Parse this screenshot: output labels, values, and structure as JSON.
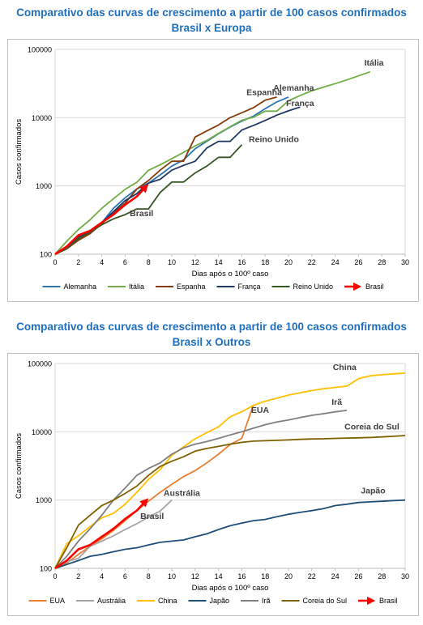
{
  "charts": [
    {
      "title_line1": "Comparativo das curvas de crescimento a partir de 100 casos confirmados",
      "title_line2": "Brasil x Europa"
    },
    {
      "title_line1": "Comparativo das curvas de crescimento a partir de 100 casos confirmados",
      "title_line2": "Brasil x Outros"
    }
  ],
  "chart_data": [
    {
      "type": "line",
      "title": "Comparativo das curvas de crescimento a partir de 100 casos confirmados Brasil x Europa",
      "xlabel": "Dias após o 100º caso",
      "ylabel": "Casos confirmados",
      "xlim": [
        0,
        30
      ],
      "ylim": [
        100,
        100000
      ],
      "yscale": "log",
      "xticks": [
        "0",
        "2",
        "4",
        "6",
        "8",
        "10",
        "12",
        "14",
        "16",
        "18",
        "20",
        "22",
        "24",
        "26",
        "28",
        "30"
      ],
      "yticks": [
        "100",
        "1000",
        "10000",
        "100000"
      ],
      "grid": "horizontal",
      "legend": "bottom",
      "series": [
        {
          "name": "Alemanha",
          "color": "#2e75b6",
          "label": "Alemanha",
          "x": [
            0,
            1,
            2,
            3,
            4,
            5,
            6,
            7,
            8,
            9,
            10,
            11,
            12,
            13,
            14,
            15,
            16,
            17,
            18,
            19,
            20
          ],
          "y": [
            100,
            130,
            165,
            210,
            290,
            470,
            670,
            900,
            1100,
            1450,
            1950,
            2400,
            3500,
            4500,
            5800,
            7300,
            8900,
            10500,
            13500,
            17000,
            20000
          ]
        },
        {
          "name": "Itália",
          "color": "#70ad47",
          "label": "Itália",
          "x": [
            0,
            1,
            2,
            3,
            4,
            5,
            6,
            7,
            8,
            9,
            10,
            11,
            12,
            13,
            14,
            15,
            16,
            17,
            18,
            19,
            20,
            21,
            22,
            23,
            24,
            25,
            26,
            27
          ],
          "y": [
            100,
            155,
            230,
            320,
            470,
            650,
            890,
            1130,
            1690,
            2040,
            2500,
            3090,
            3860,
            4640,
            5880,
            7380,
            9170,
            10150,
            12460,
            12460,
            17660,
            21160,
            24750,
            27980,
            31500,
            35700,
            41000,
            47000
          ]
        },
        {
          "name": "Espanha",
          "color": "#843c0c",
          "label": "Espanha",
          "x": [
            0,
            1,
            2,
            3,
            4,
            5,
            6,
            7,
            8,
            9,
            10,
            11,
            12,
            13,
            14,
            15,
            16,
            17,
            18,
            19
          ],
          "y": [
            100,
            120,
            160,
            200,
            280,
            400,
            560,
            900,
            1200,
            1700,
            2300,
            2300,
            5200,
            6400,
            7800,
            10000,
            11800,
            14000,
            18000,
            20000
          ]
        },
        {
          "name": "França",
          "color": "#203864",
          "label": "França",
          "x": [
            0,
            1,
            2,
            3,
            4,
            5,
            6,
            7,
            8,
            9,
            10,
            11,
            12,
            13,
            14,
            15,
            16,
            17,
            18,
            19,
            20,
            21
          ],
          "y": [
            100,
            130,
            180,
            210,
            290,
            420,
            610,
            770,
            1100,
            1250,
            1700,
            2000,
            2300,
            3600,
            4500,
            4500,
            6600,
            7700,
            9100,
            10900,
            12600,
            14300
          ]
        },
        {
          "name": "Reino Unido",
          "color": "#375623",
          "label": "Reino Unido",
          "x": [
            0,
            1,
            2,
            3,
            4,
            5,
            6,
            7,
            8,
            9,
            10,
            11,
            12,
            13,
            14,
            15,
            16
          ],
          "y": [
            100,
            120,
            170,
            210,
            270,
            330,
            380,
            460,
            460,
            800,
            1140,
            1140,
            1550,
            1950,
            2630,
            2630,
            4000
          ]
        },
        {
          "name": "Brasil",
          "color": "#ff0000",
          "label": "Brasil",
          "arrow": true,
          "x": [
            0,
            1,
            2,
            3,
            4,
            5,
            6,
            7,
            7.8
          ],
          "y": [
            100,
            130,
            190,
            220,
            290,
            380,
            530,
            700,
            980
          ]
        }
      ]
    },
    {
      "type": "line",
      "title": "Comparativo das curvas de crescimento a partir de 100 casos confirmados Brasil x Outros",
      "xlabel": "Dias após o 100º caso",
      "ylabel": "Casos confirmados",
      "xlim": [
        0,
        30
      ],
      "ylim": [
        100,
        100000
      ],
      "yscale": "log",
      "xticks": [
        "0",
        "2",
        "4",
        "6",
        "8",
        "10",
        "12",
        "14",
        "16",
        "18",
        "20",
        "22",
        "24",
        "26",
        "28",
        "30"
      ],
      "yticks": [
        "100",
        "1000",
        "10000",
        "100000"
      ],
      "grid": "horizontal",
      "legend": "bottom",
      "series": [
        {
          "name": "EUA",
          "color": "#ed7d31",
          "label": "EUA",
          "x": [
            0,
            1,
            2,
            3,
            4,
            5,
            6,
            7,
            8,
            9,
            10,
            11,
            12,
            13,
            14,
            15,
            16,
            17
          ],
          "y": [
            100,
            120,
            160,
            210,
            270,
            360,
            500,
            700,
            960,
            1300,
            1700,
            2200,
            2700,
            3500,
            4700,
            6500,
            8000,
            25000
          ]
        },
        {
          "name": "Austrália",
          "color": "#a5a5a5",
          "label": "Austrália",
          "x": [
            0,
            1,
            2,
            3,
            4,
            5,
            6,
            7,
            8,
            9,
            10
          ],
          "y": [
            100,
            125,
            140,
            210,
            250,
            300,
            370,
            450,
            560,
            690,
            1000
          ]
        },
        {
          "name": "China",
          "color": "#ffc000",
          "label": "China",
          "x": [
            0,
            1,
            2,
            3,
            4,
            5,
            6,
            7,
            8,
            9,
            10,
            11,
            12,
            13,
            14,
            15,
            16,
            17,
            18,
            19,
            20,
            21,
            22,
            23,
            24,
            25,
            26,
            27,
            28,
            29,
            30
          ],
          "y": [
            100,
            230,
            300,
            410,
            550,
            640,
            870,
            1300,
            2000,
            2800,
            4500,
            6000,
            7900,
            9700,
            11800,
            16600,
            19700,
            24400,
            28000,
            31000,
            34500,
            37200,
            40200,
            42700,
            44700,
            46600,
            60000,
            66000,
            68500,
            70500,
            72500
          ]
        },
        {
          "name": "Japão",
          "color": "#1f4e79",
          "label": "Japão",
          "x": [
            0,
            2,
            3,
            4,
            5,
            6,
            7,
            8,
            9,
            10,
            11,
            12,
            13,
            14,
            15,
            16,
            17,
            18,
            19,
            20,
            21,
            22,
            23,
            24,
            25,
            26,
            27,
            28,
            29,
            30
          ],
          "y": [
            100,
            130,
            150,
            160,
            175,
            190,
            200,
            220,
            240,
            250,
            260,
            290,
            320,
            370,
            420,
            460,
            500,
            520,
            570,
            620,
            660,
            700,
            750,
            830,
            870,
            920,
            940,
            960,
            980,
            1000
          ]
        },
        {
          "name": "Irã",
          "color": "#7f7f7f",
          "label": "Irã",
          "x": [
            0,
            1,
            2,
            3,
            4,
            5,
            6,
            7,
            8,
            9,
            10,
            11,
            12,
            13,
            14,
            15,
            16,
            17,
            18,
            19,
            20,
            21,
            22,
            23,
            24,
            25
          ],
          "y": [
            100,
            150,
            250,
            380,
            600,
            1000,
            1500,
            2300,
            2900,
            3500,
            4700,
            5800,
            6600,
            7200,
            8000,
            9000,
            10000,
            11300,
            12700,
            13900,
            14900,
            16200,
            17400,
            18400,
            19600,
            20600
          ]
        },
        {
          "name": "Coreia do Sul",
          "color": "#7f6000",
          "label": "Coreia do Sul",
          "x": [
            0,
            1,
            2,
            3,
            4,
            5,
            6,
            7,
            8,
            9,
            10,
            11,
            12,
            13,
            14,
            15,
            16,
            17,
            18,
            19,
            20,
            21,
            22,
            23,
            24,
            25,
            26,
            27,
            28,
            29,
            30
          ],
          "y": [
            100,
            200,
            430,
            600,
            830,
            1000,
            1250,
            1600,
            2300,
            3100,
            3700,
            4300,
            5200,
            5700,
            6100,
            6600,
            7000,
            7300,
            7400,
            7500,
            7600,
            7750,
            7850,
            7900,
            8000,
            8100,
            8150,
            8250,
            8400,
            8600,
            8800
          ]
        },
        {
          "name": "Brasil",
          "color": "#ff0000",
          "label": "Brasil",
          "arrow": true,
          "x": [
            0,
            1,
            2,
            3,
            4,
            5,
            6,
            7,
            7.8
          ],
          "y": [
            100,
            130,
            190,
            220,
            290,
            380,
            530,
            700,
            980
          ]
        }
      ]
    }
  ]
}
